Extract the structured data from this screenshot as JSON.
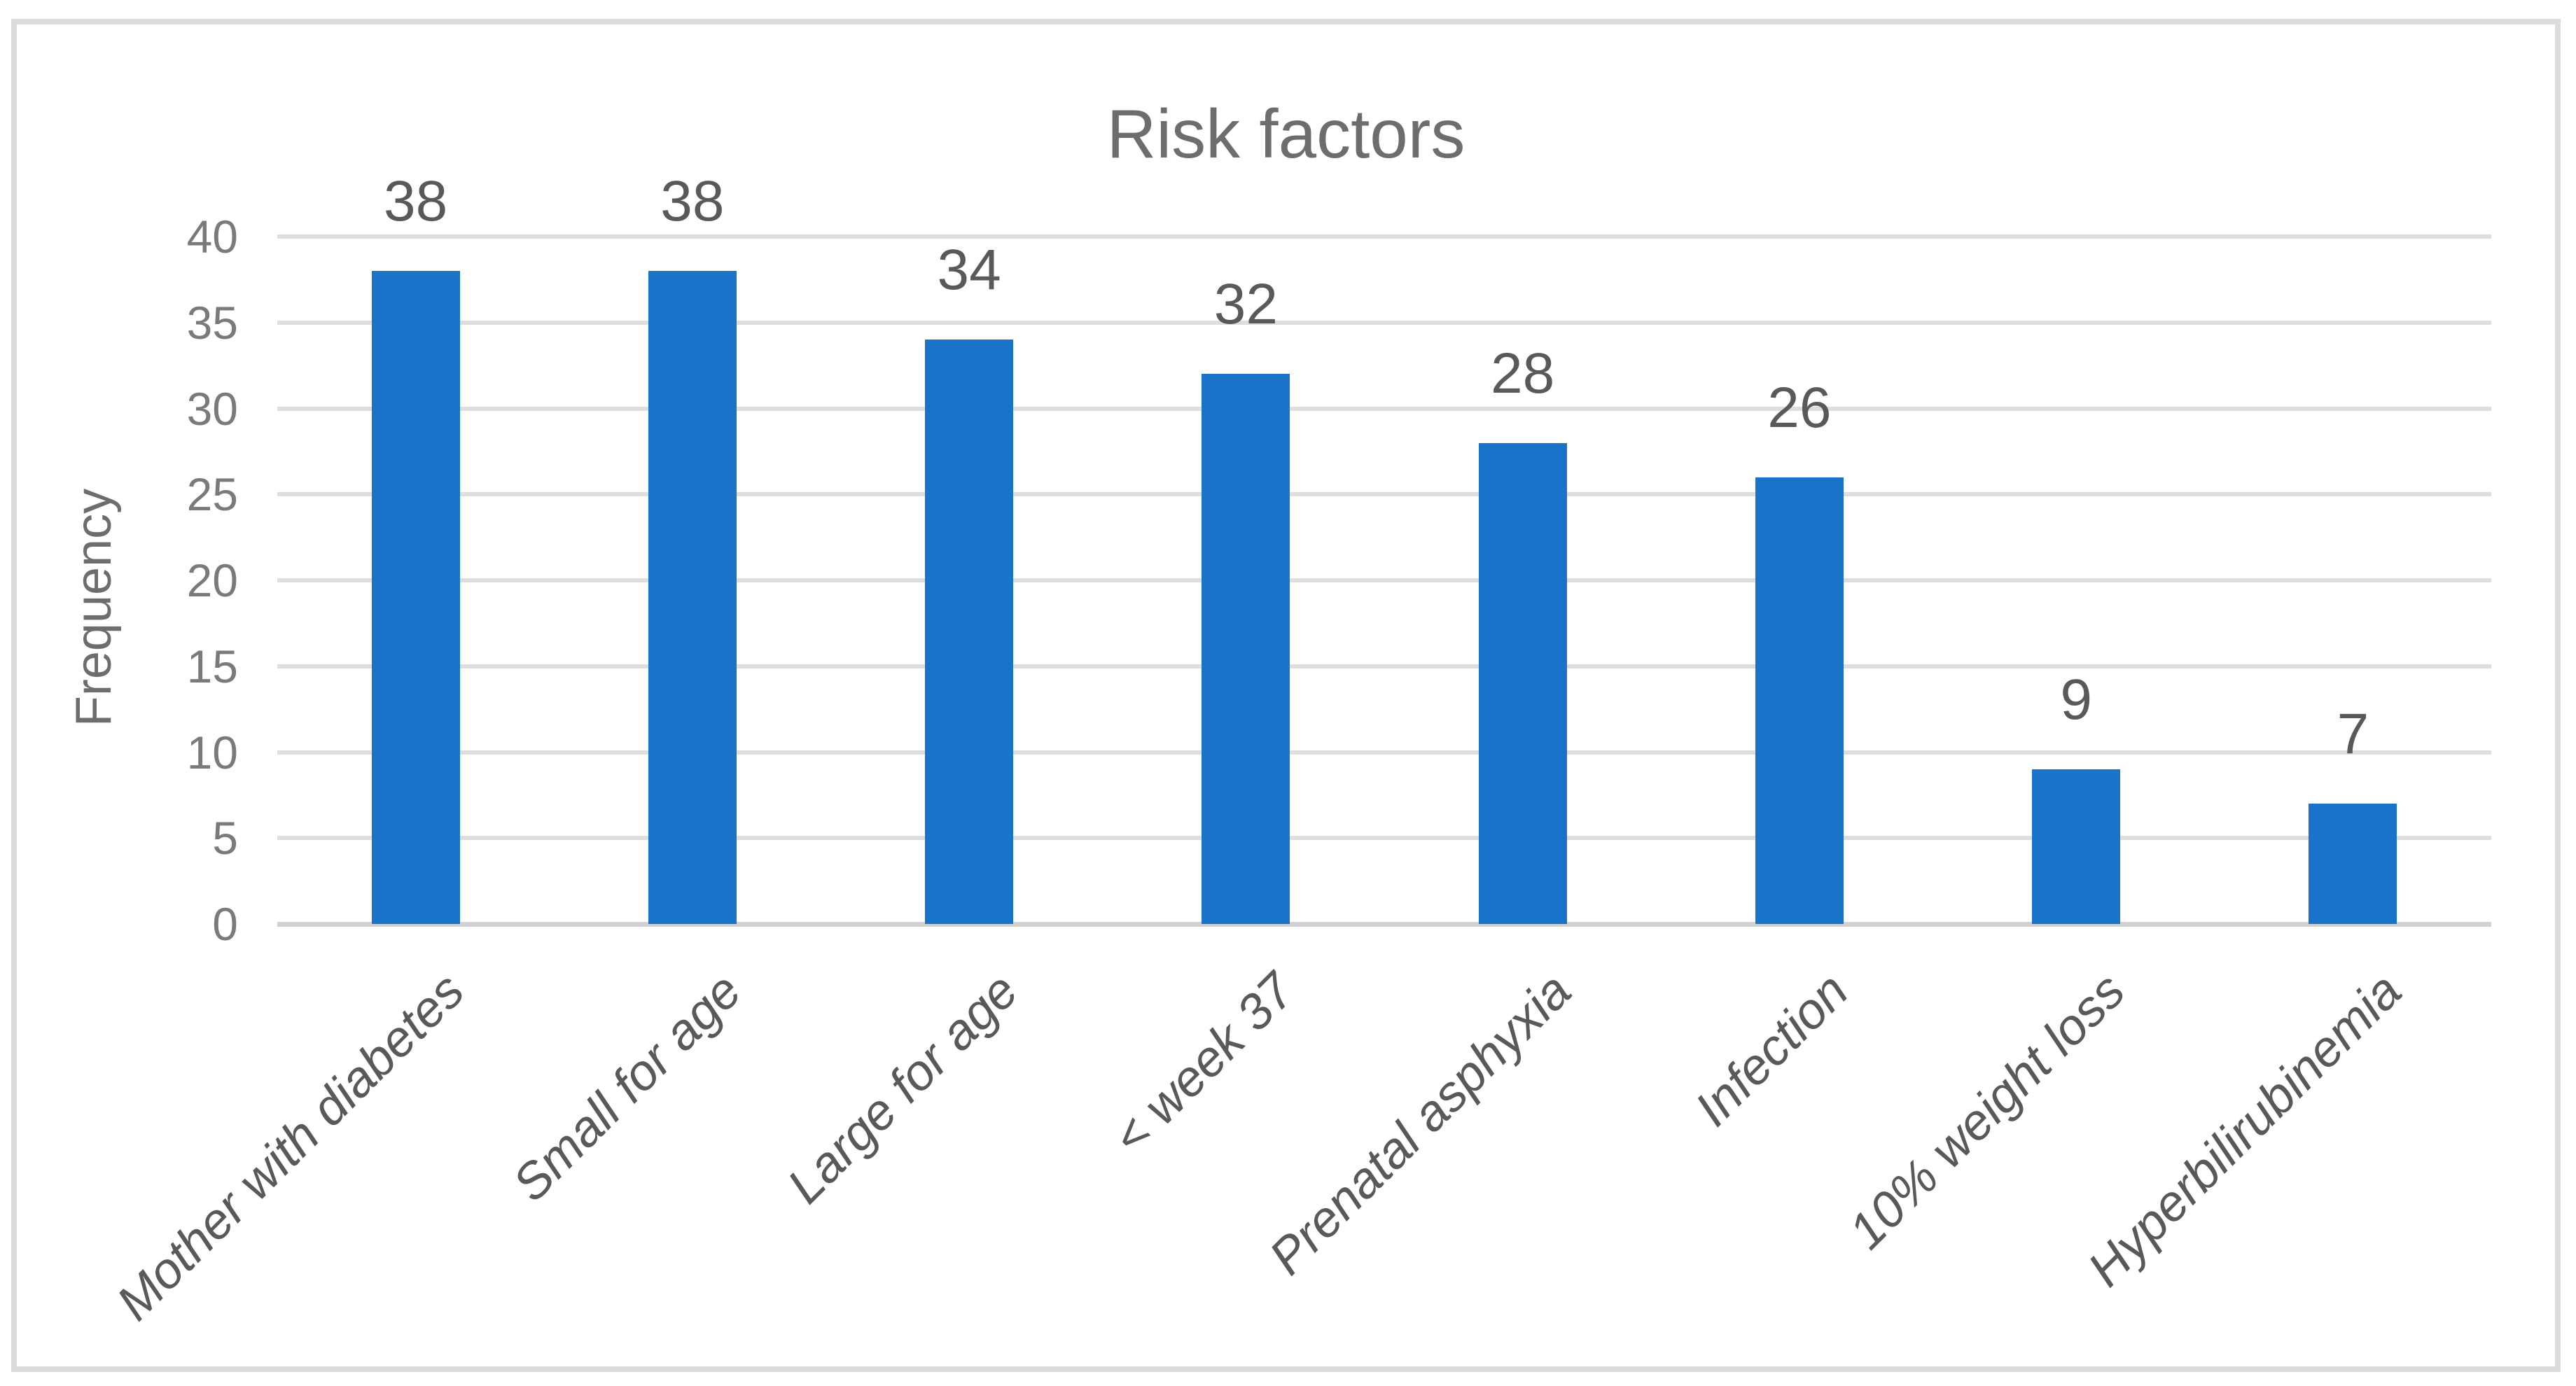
{
  "chart_data": {
    "type": "bar",
    "title": "Risk factors",
    "xlabel": "",
    "ylabel": "Frequency",
    "categories": [
      "Mother with diabetes",
      "Small for age",
      "Large for age",
      "< week 37",
      "Prenatal asphyxia",
      "Infection",
      "10% weight loss",
      "Hyperbilirubinemia"
    ],
    "values": [
      38,
      38,
      34,
      32,
      28,
      26,
      9,
      7
    ],
    "data_labels": [
      38,
      38,
      34,
      32,
      28,
      26,
      9,
      7
    ],
    "ylim": [
      0,
      40
    ],
    "yticks": [
      0,
      5,
      10,
      15,
      20,
      25,
      30,
      35,
      40
    ],
    "grid": true,
    "legend": false,
    "bar_color": "#1973c8",
    "gridline_color": "#dedede",
    "axis_line_color": "#d2d2d2",
    "frame_border_color": "#dcdcdc",
    "title_color": "#6d6d6d",
    "tick_label_color": "#7a7a7a",
    "category_label_color": "#595959",
    "value_label_color": "#595959"
  }
}
